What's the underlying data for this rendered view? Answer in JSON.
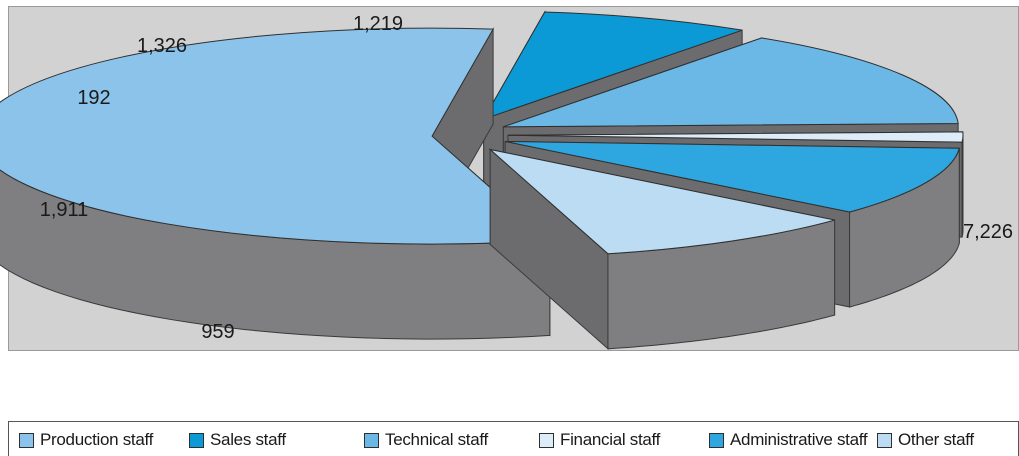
{
  "chart_data": {
    "type": "pie",
    "three_d": true,
    "exploded": true,
    "categories": [
      "Production staff",
      "Sales staff",
      "Technical staff",
      "Financial staff",
      "Administrative staff",
      "Other staff"
    ],
    "values": [
      7226,
      959,
      1911,
      192,
      1326,
      1219
    ],
    "data_labels": [
      "7,226",
      "959",
      "1,911",
      "192",
      "1,326",
      "1,219"
    ],
    "colors": [
      "#8cc3ea",
      "#0c9ad6",
      "#6bb7e6",
      "#dcecf8",
      "#2ea6e0",
      "#bcdcf3"
    ],
    "legend_position": "bottom"
  },
  "colors": {
    "plot_background": "#d2d2d3",
    "slice_side": "#7f7f82",
    "slice_side_dark": "#6c6c6f"
  }
}
